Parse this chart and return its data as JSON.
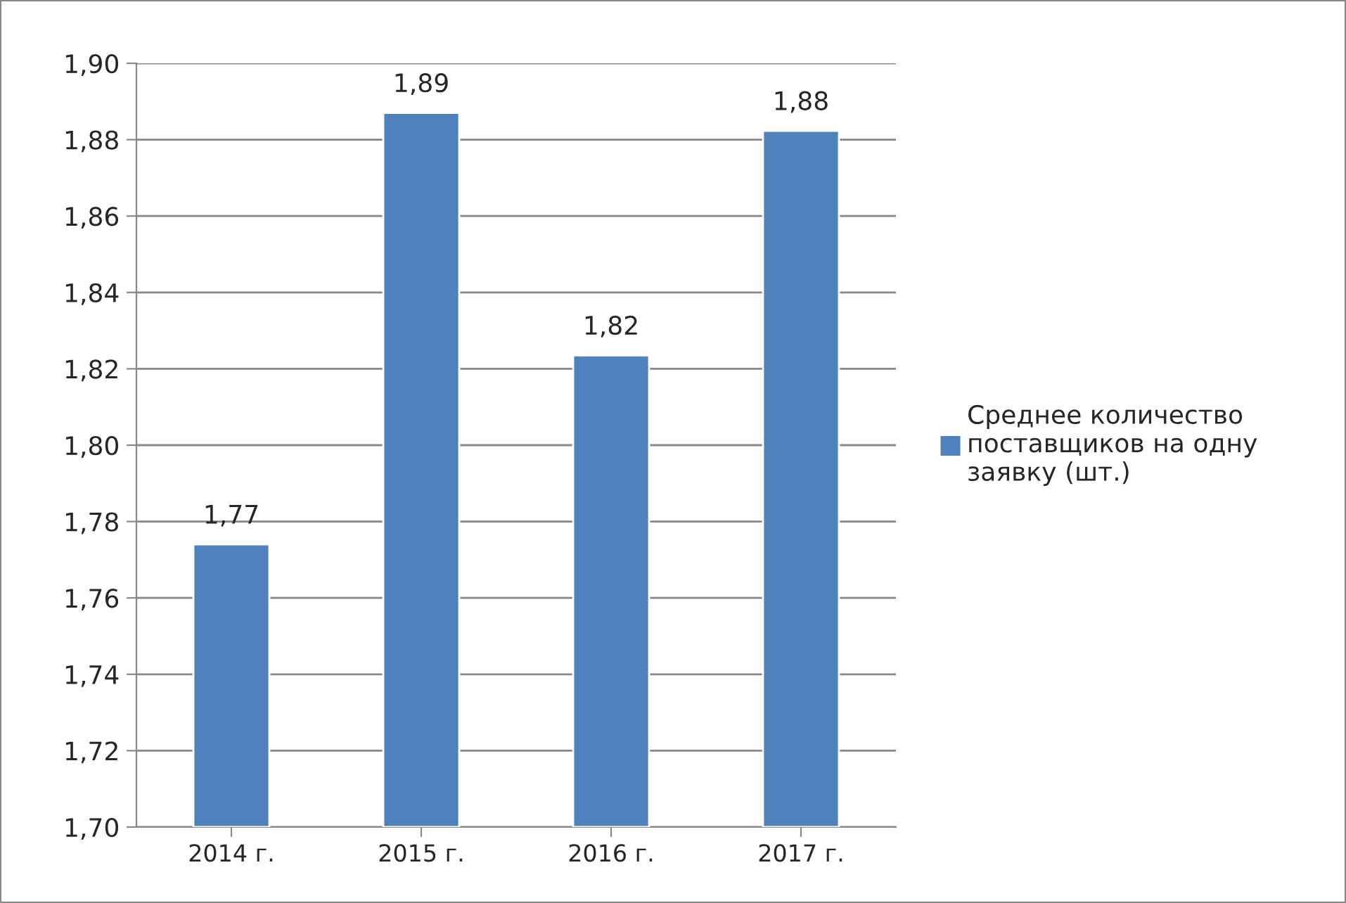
{
  "chart_data": {
    "type": "bar",
    "categories": [
      "2014 г.",
      "2015 г.",
      "2016 г.",
      "2017 г."
    ],
    "series": [
      {
        "name": "Среднее количество поставщиков на одну заявку (шт.)",
        "color": "#4f81bd",
        "values": [
          1.774,
          1.887,
          1.8235,
          1.8823
        ],
        "value_labels": [
          "1,77",
          "1,89",
          "1,82",
          "1,88"
        ]
      }
    ],
    "ylim": [
      1.7,
      1.9
    ],
    "yticks": [
      {
        "value": 1.7,
        "label": "1,70"
      },
      {
        "value": 1.72,
        "label": "1,72"
      },
      {
        "value": 1.74,
        "label": "1,74"
      },
      {
        "value": 1.76,
        "label": "1,76"
      },
      {
        "value": 1.78,
        "label": "1,78"
      },
      {
        "value": 1.8,
        "label": "1,80"
      },
      {
        "value": 1.82,
        "label": "1,82"
      },
      {
        "value": 1.84,
        "label": "1,84"
      },
      {
        "value": 1.86,
        "label": "1,86"
      },
      {
        "value": 1.88,
        "label": "1,88"
      },
      {
        "value": 1.9,
        "label": "1,90"
      }
    ],
    "grid": "y",
    "legend": "right"
  }
}
